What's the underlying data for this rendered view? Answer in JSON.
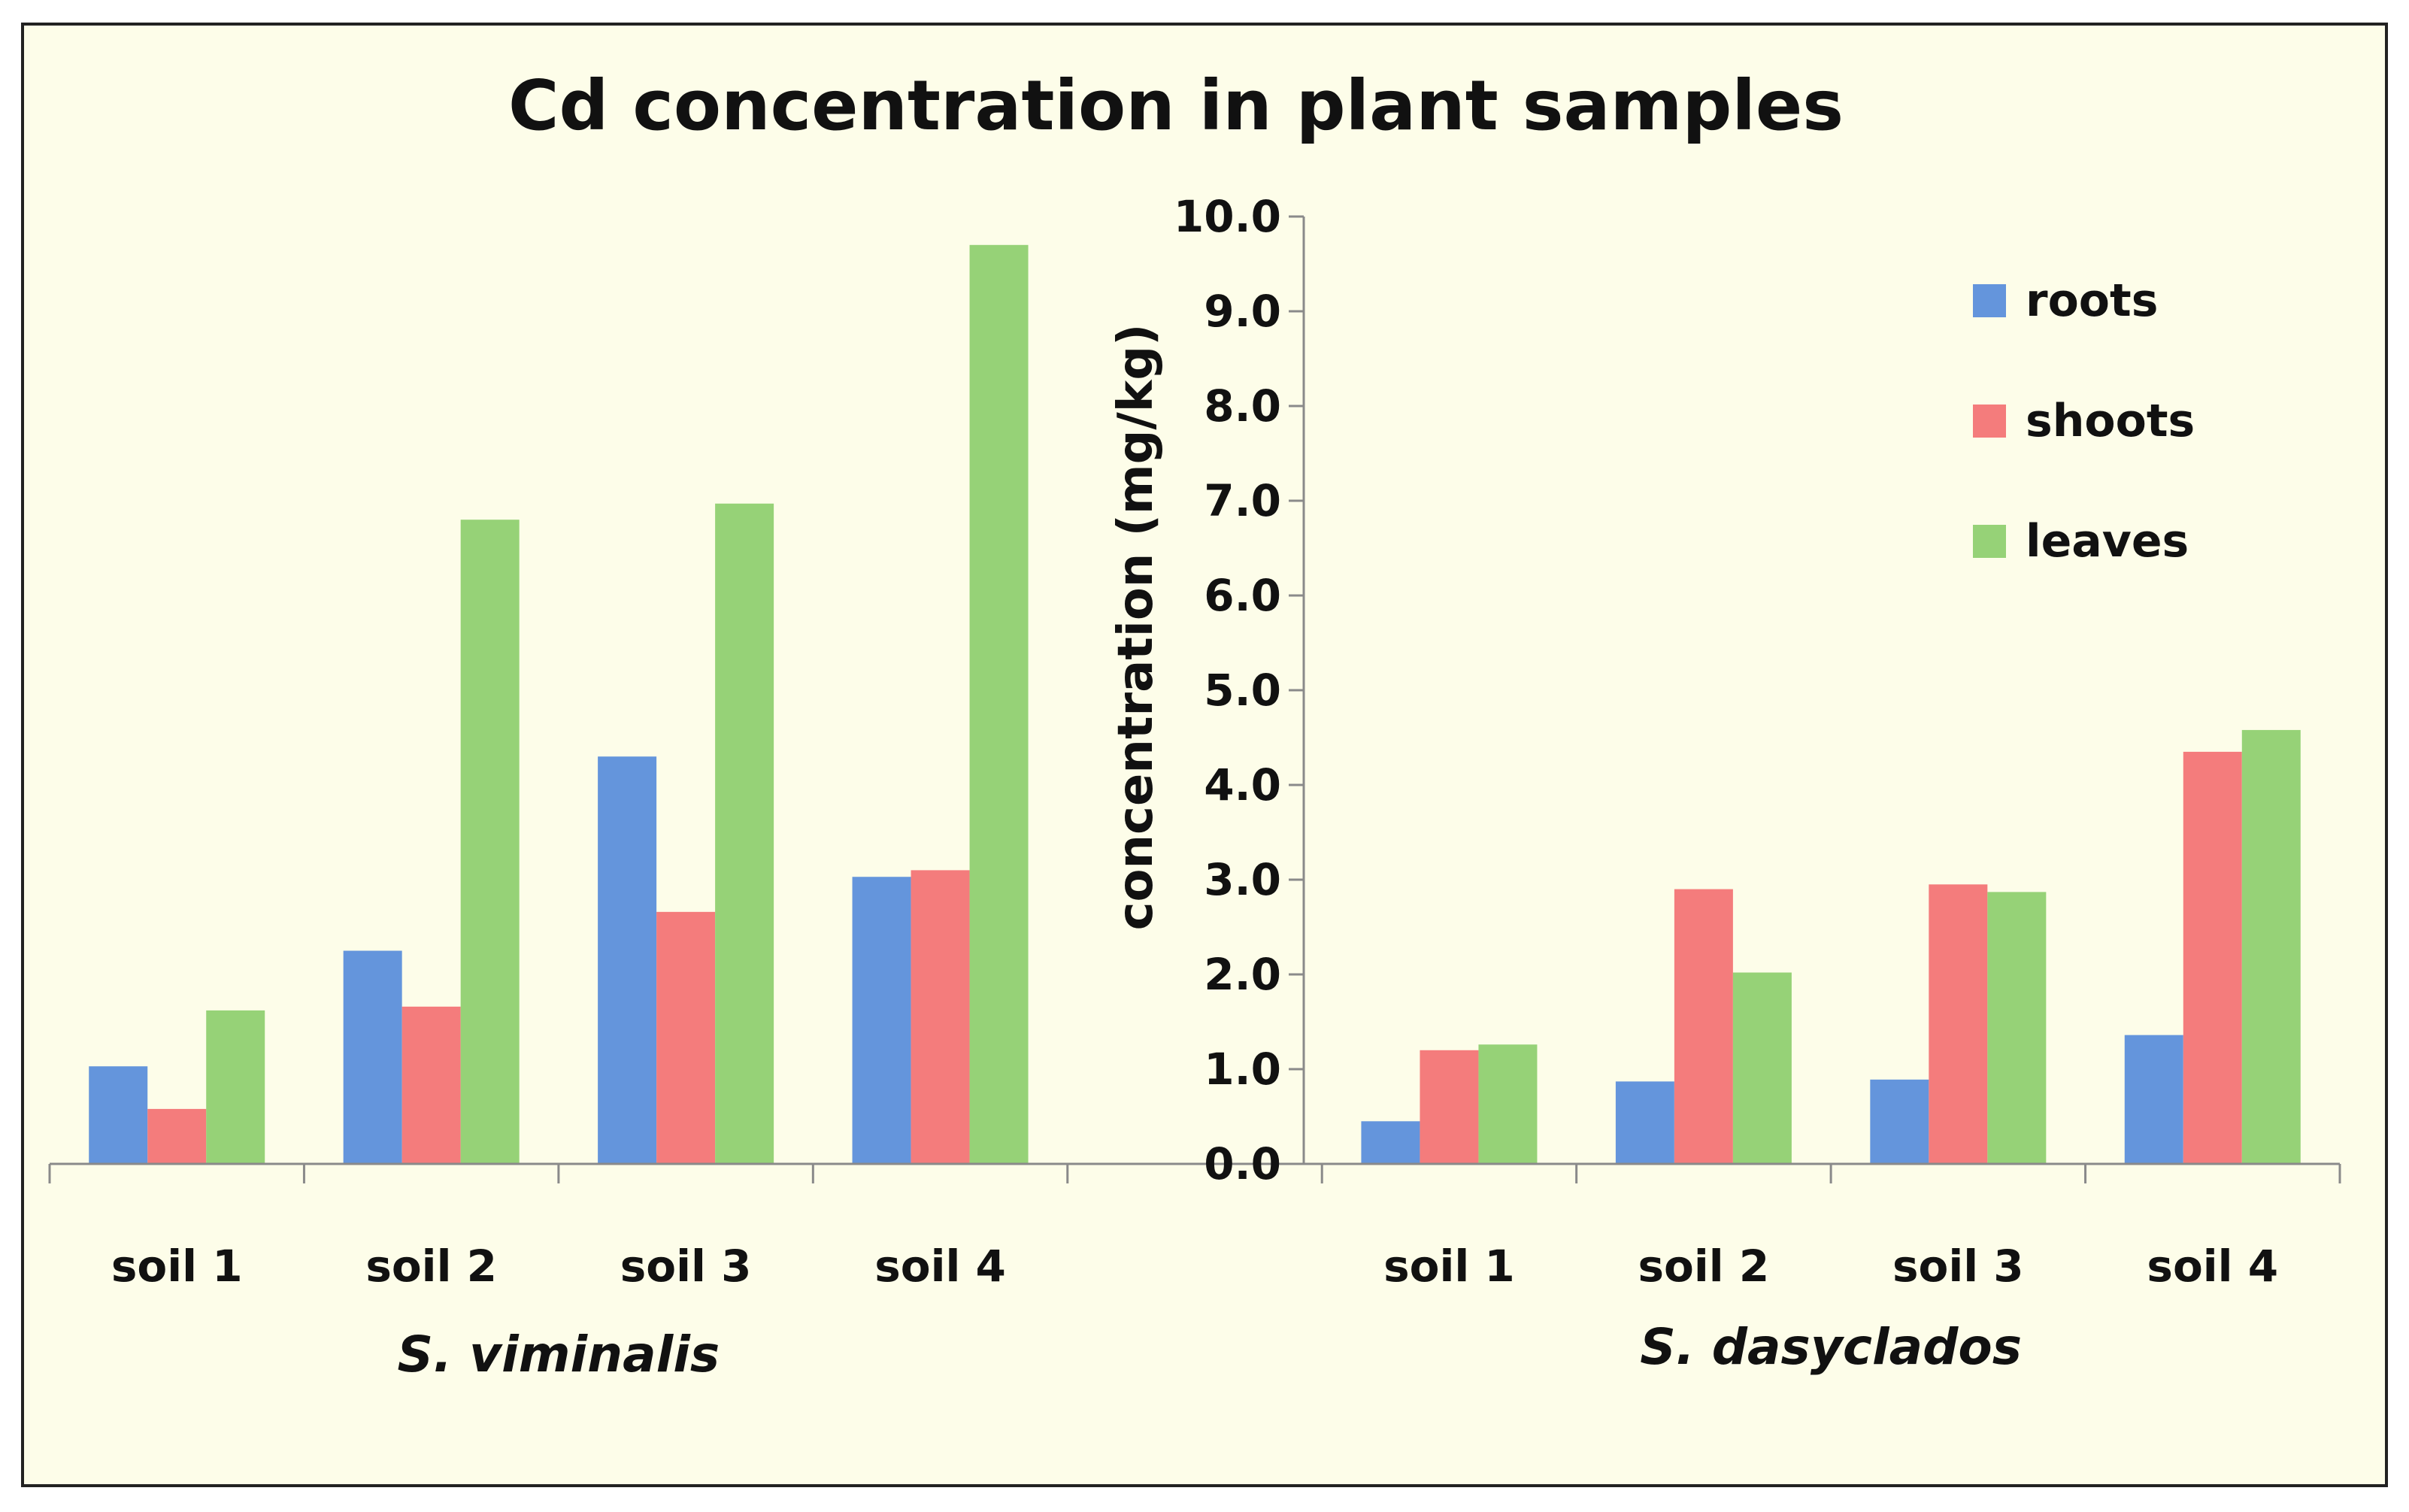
{
  "chart_data": {
    "type": "bar",
    "title": "Cd concentration in plant samples",
    "ylabel": "concentration (mg/kg)",
    "xlabel": "",
    "ylim": [
      0,
      10
    ],
    "y_ticks": [
      "0.0",
      "1.0",
      "2.0",
      "3.0",
      "4.0",
      "5.0",
      "6.0",
      "7.0",
      "8.0",
      "9.0",
      "10.0"
    ],
    "legend_position": "top-right",
    "series_colors": [
      "#6495dc",
      "#f47c7c",
      "#96d277"
    ],
    "groups": [
      {
        "name": "S. viminalis",
        "categories": [
          "soil 1",
          "soil 2",
          "soil 3",
          "soil 4"
        ],
        "series": [
          {
            "name": "roots",
            "values": [
              1.03,
              2.25,
              4.3,
              3.03
            ]
          },
          {
            "name": "shoots",
            "values": [
              0.58,
              1.66,
              2.66,
              3.1
            ]
          },
          {
            "name": "leaves",
            "values": [
              1.62,
              6.8,
              6.97,
              9.7
            ]
          }
        ]
      },
      {
        "name": "S. dasyclados",
        "categories": [
          "soil 1",
          "soil 2",
          "soil 3",
          "soil 4"
        ],
        "series": [
          {
            "name": "roots",
            "values": [
              0.45,
              0.87,
              0.89,
              1.36
            ]
          },
          {
            "name": "shoots",
            "values": [
              1.2,
              2.9,
              2.95,
              4.35
            ]
          },
          {
            "name": "leaves",
            "values": [
              1.26,
              2.02,
              2.87,
              4.58
            ]
          }
        ]
      }
    ]
  }
}
